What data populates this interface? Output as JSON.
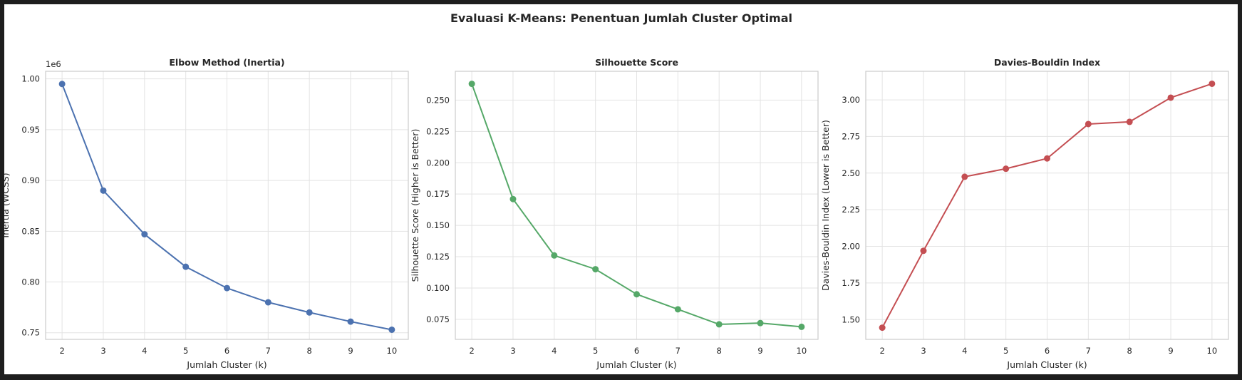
{
  "figure": {
    "suptitle": "Evaluasi K-Means: Penentuan Jumlah Cluster Optimal"
  },
  "chart_data": [
    {
      "type": "line",
      "title": "Elbow Method (Inertia)",
      "xlabel": "Jumlah Cluster (k)",
      "ylabel": "Inertia (WCSS)",
      "y_offset_label": "1e6",
      "x": [
        2,
        3,
        4,
        5,
        6,
        7,
        8,
        9,
        10
      ],
      "series": [
        {
          "values": [
            0.995,
            0.89,
            0.847,
            0.815,
            0.794,
            0.78,
            0.77,
            0.761,
            0.753
          ],
          "color": "#4c72b0"
        }
      ],
      "xlim": [
        1.6,
        10.4
      ],
      "ylim": [
        0.7435,
        1.0075
      ],
      "xticks": [
        2,
        3,
        4,
        5,
        6,
        7,
        8,
        9,
        10
      ],
      "yticks": [
        0.75,
        0.8,
        0.85,
        0.9,
        0.95,
        1.0
      ],
      "ytick_labels": [
        "0.75",
        "0.80",
        "0.85",
        "0.90",
        "0.95",
        "1.00"
      ],
      "grid": true,
      "marker": "circle"
    },
    {
      "type": "line",
      "title": "Silhouette Score",
      "xlabel": "Jumlah Cluster (k)",
      "ylabel": "Silhouette Score (Higher is Better)",
      "x": [
        2,
        3,
        4,
        5,
        6,
        7,
        8,
        9,
        10
      ],
      "series": [
        {
          "values": [
            0.263,
            0.171,
            0.126,
            0.115,
            0.095,
            0.083,
            0.071,
            0.072,
            0.069
          ],
          "color": "#55a868"
        }
      ],
      "xlim": [
        1.6,
        10.4
      ],
      "ylim": [
        0.059,
        0.273
      ],
      "xticks": [
        2,
        3,
        4,
        5,
        6,
        7,
        8,
        9,
        10
      ],
      "yticks": [
        0.075,
        0.1,
        0.125,
        0.15,
        0.175,
        0.2,
        0.225,
        0.25
      ],
      "ytick_labels": [
        "0.075",
        "0.100",
        "0.125",
        "0.150",
        "0.175",
        "0.200",
        "0.225",
        "0.250"
      ],
      "grid": true,
      "marker": "circle"
    },
    {
      "type": "line",
      "title": "Davies-Bouldin Index",
      "xlabel": "Jumlah Cluster (k)",
      "ylabel": "Davies-Bouldin Index (Lower is Better)",
      "x": [
        2,
        3,
        4,
        5,
        6,
        7,
        8,
        9,
        10
      ],
      "series": [
        {
          "values": [
            1.445,
            1.97,
            2.475,
            2.53,
            2.6,
            2.835,
            2.85,
            3.015,
            3.11
          ],
          "color": "#c44e52"
        }
      ],
      "xlim": [
        1.6,
        10.4
      ],
      "ylim": [
        1.365,
        3.195
      ],
      "xticks": [
        2,
        3,
        4,
        5,
        6,
        7,
        8,
        9,
        10
      ],
      "yticks": [
        1.5,
        1.75,
        2.0,
        2.25,
        2.5,
        2.75,
        3.0
      ],
      "ytick_labels": [
        "1.50",
        "1.75",
        "2.00",
        "2.25",
        "2.50",
        "2.75",
        "3.00"
      ],
      "grid": true,
      "marker": "circle"
    }
  ]
}
